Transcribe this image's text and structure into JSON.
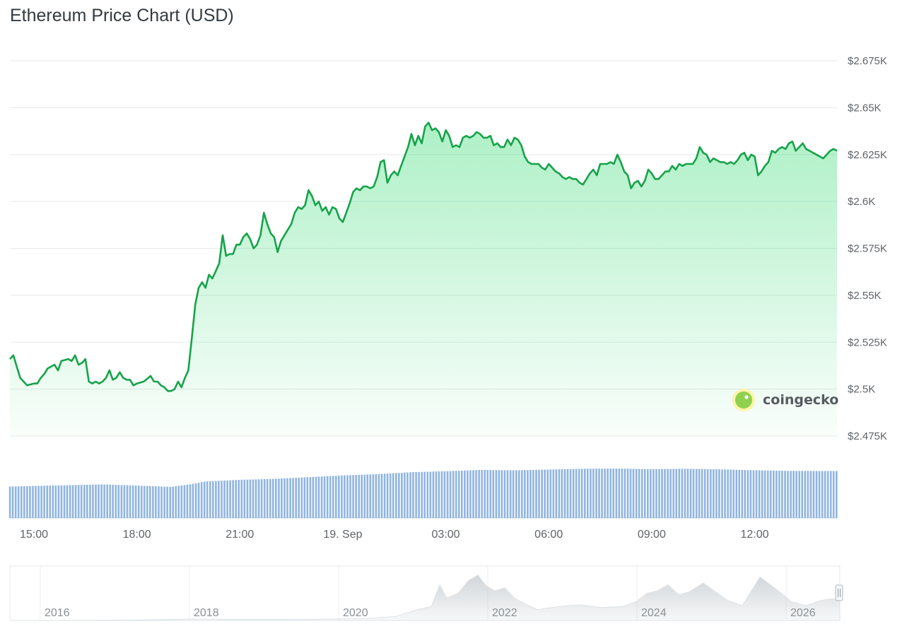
{
  "title": "Ethereum Price Chart (USD)",
  "watermark": "coingecko",
  "colors": {
    "line": "#16a34a",
    "fill": "#4ade80",
    "volume": "#8fb4e0",
    "grid": "#e6e8ea",
    "navigator": "#dfe3e6"
  },
  "chart_data": {
    "type": "area",
    "title": "Ethereum Price Chart (USD)",
    "xlabel": "",
    "ylabel": "",
    "ylim": [
      2475,
      2675
    ],
    "yticks": [
      2475,
      2500,
      2525,
      2550,
      2575,
      2600,
      2625,
      2650,
      2675
    ],
    "ytick_labels": [
      "$2.475K",
      "$2.5K",
      "$2.525K",
      "$2.55K",
      "$2.575K",
      "$2.6K",
      "$2.625K",
      "$2.65K",
      "$2.675K"
    ],
    "x_unit": "hours after 18 Sep 15:00",
    "xlim": [
      -0.7,
      23.4
    ],
    "xticks": [
      0,
      3,
      6,
      9,
      12,
      15,
      18,
      21
    ],
    "xtick_labels": [
      "15:00",
      "18:00",
      "21:00",
      "19. Sep",
      "03:00",
      "06:00",
      "09:00",
      "12:00"
    ],
    "grid": true,
    "series": [
      {
        "values": [
          [
            -0.7,
            2516
          ],
          [
            -0.6,
            2518
          ],
          [
            -0.5,
            2512
          ],
          [
            -0.4,
            2506
          ],
          [
            -0.2,
            2502
          ],
          [
            0.0,
            2503
          ],
          [
            0.1,
            2503
          ],
          [
            0.2,
            2506
          ],
          [
            0.3,
            2508
          ],
          [
            0.4,
            2511
          ],
          [
            0.6,
            2513
          ],
          [
            0.7,
            2510
          ],
          [
            0.8,
            2515
          ],
          [
            1.0,
            2516
          ],
          [
            1.1,
            2515
          ],
          [
            1.2,
            2518
          ],
          [
            1.3,
            2513
          ],
          [
            1.4,
            2514
          ],
          [
            1.5,
            2516
          ],
          [
            1.6,
            2504
          ],
          [
            1.7,
            2503
          ],
          [
            1.8,
            2504
          ],
          [
            1.9,
            2503
          ],
          [
            2.0,
            2504
          ],
          [
            2.1,
            2506
          ],
          [
            2.2,
            2510
          ],
          [
            2.3,
            2505
          ],
          [
            2.4,
            2506
          ],
          [
            2.5,
            2509
          ],
          [
            2.6,
            2506
          ],
          [
            2.7,
            2505
          ],
          [
            2.8,
            2505
          ],
          [
            2.9,
            2502
          ],
          [
            3.0,
            2503
          ],
          [
            3.2,
            2504
          ],
          [
            3.4,
            2507
          ],
          [
            3.5,
            2504
          ],
          [
            3.6,
            2504
          ],
          [
            3.7,
            2502
          ],
          [
            3.8,
            2501
          ],
          [
            3.9,
            2499
          ],
          [
            4.0,
            2499
          ],
          [
            4.1,
            2500
          ],
          [
            4.2,
            2504
          ],
          [
            4.3,
            2501
          ],
          [
            4.4,
            2506
          ],
          [
            4.5,
            2510
          ],
          [
            4.6,
            2527
          ],
          [
            4.7,
            2545
          ],
          [
            4.8,
            2554
          ],
          [
            4.9,
            2557
          ],
          [
            5.0,
            2554
          ],
          [
            5.1,
            2561
          ],
          [
            5.2,
            2559
          ],
          [
            5.3,
            2563
          ],
          [
            5.4,
            2567
          ],
          [
            5.5,
            2582
          ],
          [
            5.6,
            2571
          ],
          [
            5.7,
            2572
          ],
          [
            5.8,
            2572
          ],
          [
            5.9,
            2577
          ],
          [
            6.0,
            2577
          ],
          [
            6.1,
            2581
          ],
          [
            6.2,
            2583
          ],
          [
            6.3,
            2580
          ],
          [
            6.4,
            2575
          ],
          [
            6.5,
            2577
          ],
          [
            6.6,
            2582
          ],
          [
            6.7,
            2594
          ],
          [
            6.8,
            2588
          ],
          [
            6.9,
            2583
          ],
          [
            7.0,
            2581
          ],
          [
            7.1,
            2573
          ],
          [
            7.2,
            2579
          ],
          [
            7.3,
            2582
          ],
          [
            7.4,
            2585
          ],
          [
            7.5,
            2588
          ],
          [
            7.6,
            2594
          ],
          [
            7.7,
            2597
          ],
          [
            7.8,
            2596
          ],
          [
            7.9,
            2598
          ],
          [
            8.0,
            2606
          ],
          [
            8.1,
            2603
          ],
          [
            8.2,
            2598
          ],
          [
            8.3,
            2600
          ],
          [
            8.4,
            2595
          ],
          [
            8.5,
            2597
          ],
          [
            8.6,
            2593
          ],
          [
            8.7,
            2597
          ],
          [
            8.8,
            2596
          ],
          [
            8.9,
            2591
          ],
          [
            9.0,
            2589
          ],
          [
            9.1,
            2594
          ],
          [
            9.2,
            2599
          ],
          [
            9.3,
            2605
          ],
          [
            9.4,
            2607
          ],
          [
            9.5,
            2606
          ],
          [
            9.6,
            2608
          ],
          [
            9.7,
            2608
          ],
          [
            9.8,
            2607
          ],
          [
            9.9,
            2608
          ],
          [
            10.0,
            2613
          ],
          [
            10.1,
            2621
          ],
          [
            10.2,
            2622
          ],
          [
            10.3,
            2610
          ],
          [
            10.4,
            2614
          ],
          [
            10.5,
            2616
          ],
          [
            10.6,
            2614
          ],
          [
            10.7,
            2619
          ],
          [
            10.8,
            2624
          ],
          [
            10.9,
            2629
          ],
          [
            11.0,
            2636
          ],
          [
            11.1,
            2630
          ],
          [
            11.2,
            2635
          ],
          [
            11.3,
            2631
          ],
          [
            11.4,
            2640
          ],
          [
            11.5,
            2642
          ],
          [
            11.6,
            2638
          ],
          [
            11.7,
            2639
          ],
          [
            11.8,
            2637
          ],
          [
            11.9,
            2632
          ],
          [
            12.0,
            2638
          ],
          [
            12.1,
            2635
          ],
          [
            12.2,
            2629
          ],
          [
            12.3,
            2630
          ],
          [
            12.4,
            2629
          ],
          [
            12.5,
            2634
          ],
          [
            12.6,
            2635
          ],
          [
            12.7,
            2634
          ],
          [
            12.8,
            2635
          ],
          [
            12.9,
            2637
          ],
          [
            13.0,
            2636
          ],
          [
            13.1,
            2634
          ],
          [
            13.2,
            2634
          ],
          [
            13.3,
            2635
          ],
          [
            13.4,
            2630
          ],
          [
            13.5,
            2631
          ],
          [
            13.6,
            2629
          ],
          [
            13.7,
            2629
          ],
          [
            13.8,
            2633
          ],
          [
            13.9,
            2630
          ],
          [
            14.0,
            2634
          ],
          [
            14.1,
            2633
          ],
          [
            14.2,
            2630
          ],
          [
            14.3,
            2624
          ],
          [
            14.4,
            2621
          ],
          [
            14.5,
            2620
          ],
          [
            14.6,
            2620
          ],
          [
            14.7,
            2620
          ],
          [
            14.8,
            2618
          ],
          [
            14.9,
            2617
          ],
          [
            15.0,
            2620
          ],
          [
            15.1,
            2618
          ],
          [
            15.2,
            2616
          ],
          [
            15.3,
            2615
          ],
          [
            15.4,
            2613
          ],
          [
            15.5,
            2612
          ],
          [
            15.6,
            2613
          ],
          [
            15.7,
            2612
          ],
          [
            15.8,
            2612
          ],
          [
            15.9,
            2610
          ],
          [
            16.0,
            2609
          ],
          [
            16.1,
            2612
          ],
          [
            16.2,
            2615
          ],
          [
            16.3,
            2617
          ],
          [
            16.4,
            2614
          ],
          [
            16.5,
            2620
          ],
          [
            16.6,
            2620
          ],
          [
            16.7,
            2620
          ],
          [
            16.8,
            2621
          ],
          [
            16.9,
            2620
          ],
          [
            17.0,
            2625
          ],
          [
            17.1,
            2621
          ],
          [
            17.2,
            2616
          ],
          [
            17.3,
            2614
          ],
          [
            17.4,
            2607
          ],
          [
            17.5,
            2610
          ],
          [
            17.6,
            2611
          ],
          [
            17.7,
            2608
          ],
          [
            17.8,
            2611
          ],
          [
            17.9,
            2617
          ],
          [
            18.0,
            2615
          ],
          [
            18.1,
            2612
          ],
          [
            18.2,
            2612
          ],
          [
            18.3,
            2614
          ],
          [
            18.4,
            2616
          ],
          [
            18.5,
            2616
          ],
          [
            18.6,
            2619
          ],
          [
            18.7,
            2617
          ],
          [
            18.8,
            2620
          ],
          [
            18.9,
            2619
          ],
          [
            19.0,
            2620
          ],
          [
            19.1,
            2620
          ],
          [
            19.2,
            2620
          ],
          [
            19.3,
            2623
          ],
          [
            19.4,
            2629
          ],
          [
            19.5,
            2626
          ],
          [
            19.6,
            2625
          ],
          [
            19.7,
            2621
          ],
          [
            19.8,
            2623
          ],
          [
            19.9,
            2622
          ],
          [
            20.0,
            2621
          ],
          [
            20.1,
            2621
          ],
          [
            20.2,
            2620
          ],
          [
            20.3,
            2621
          ],
          [
            20.4,
            2620
          ],
          [
            20.5,
            2622
          ],
          [
            20.6,
            2625
          ],
          [
            20.7,
            2626
          ],
          [
            20.8,
            2622
          ],
          [
            20.9,
            2625
          ],
          [
            21.0,
            2624
          ],
          [
            21.1,
            2614
          ],
          [
            21.2,
            2616
          ],
          [
            21.3,
            2619
          ],
          [
            21.4,
            2621
          ],
          [
            21.5,
            2627
          ],
          [
            21.6,
            2626
          ],
          [
            21.7,
            2628
          ],
          [
            21.8,
            2629
          ],
          [
            21.9,
            2628
          ],
          [
            22.0,
            2631
          ],
          [
            22.1,
            2632
          ],
          [
            22.2,
            2627
          ],
          [
            22.3,
            2629
          ],
          [
            22.4,
            2631
          ],
          [
            22.5,
            2628
          ],
          [
            22.6,
            2627
          ],
          [
            22.7,
            2626
          ],
          [
            22.8,
            2625
          ],
          [
            22.9,
            2624
          ],
          [
            23.0,
            2623
          ],
          [
            23.1,
            2625
          ],
          [
            23.2,
            2627
          ],
          [
            23.3,
            2628
          ],
          [
            23.4,
            2627
          ]
        ]
      }
    ],
    "volume": {
      "values": [
        [
          -0.7,
          16.5
        ],
        [
          0.0,
          16.8
        ],
        [
          1.0,
          17.2
        ],
        [
          2.0,
          17.6
        ],
        [
          3.0,
          17.0
        ],
        [
          4.0,
          16.3
        ],
        [
          4.6,
          17.8
        ],
        [
          5.0,
          19.2
        ],
        [
          6.0,
          20.0
        ],
        [
          7.0,
          20.5
        ],
        [
          8.0,
          21.4
        ],
        [
          9.0,
          22.3
        ],
        [
          10.0,
          23.0
        ],
        [
          11.0,
          24.0
        ],
        [
          12.0,
          24.5
        ],
        [
          13.0,
          25.2
        ],
        [
          14.0,
          25.0
        ],
        [
          15.0,
          25.4
        ],
        [
          16.0,
          25.8
        ],
        [
          17.0,
          25.9
        ],
        [
          18.0,
          25.6
        ],
        [
          19.0,
          25.8
        ],
        [
          20.0,
          25.5
        ],
        [
          21.0,
          25.0
        ],
        [
          22.0,
          24.7
        ],
        [
          23.4,
          24.6
        ]
      ]
    },
    "navigator": {
      "tick_labels": [
        "2016",
        "2018",
        "2020",
        "2022",
        "2024",
        "2026"
      ]
    }
  }
}
